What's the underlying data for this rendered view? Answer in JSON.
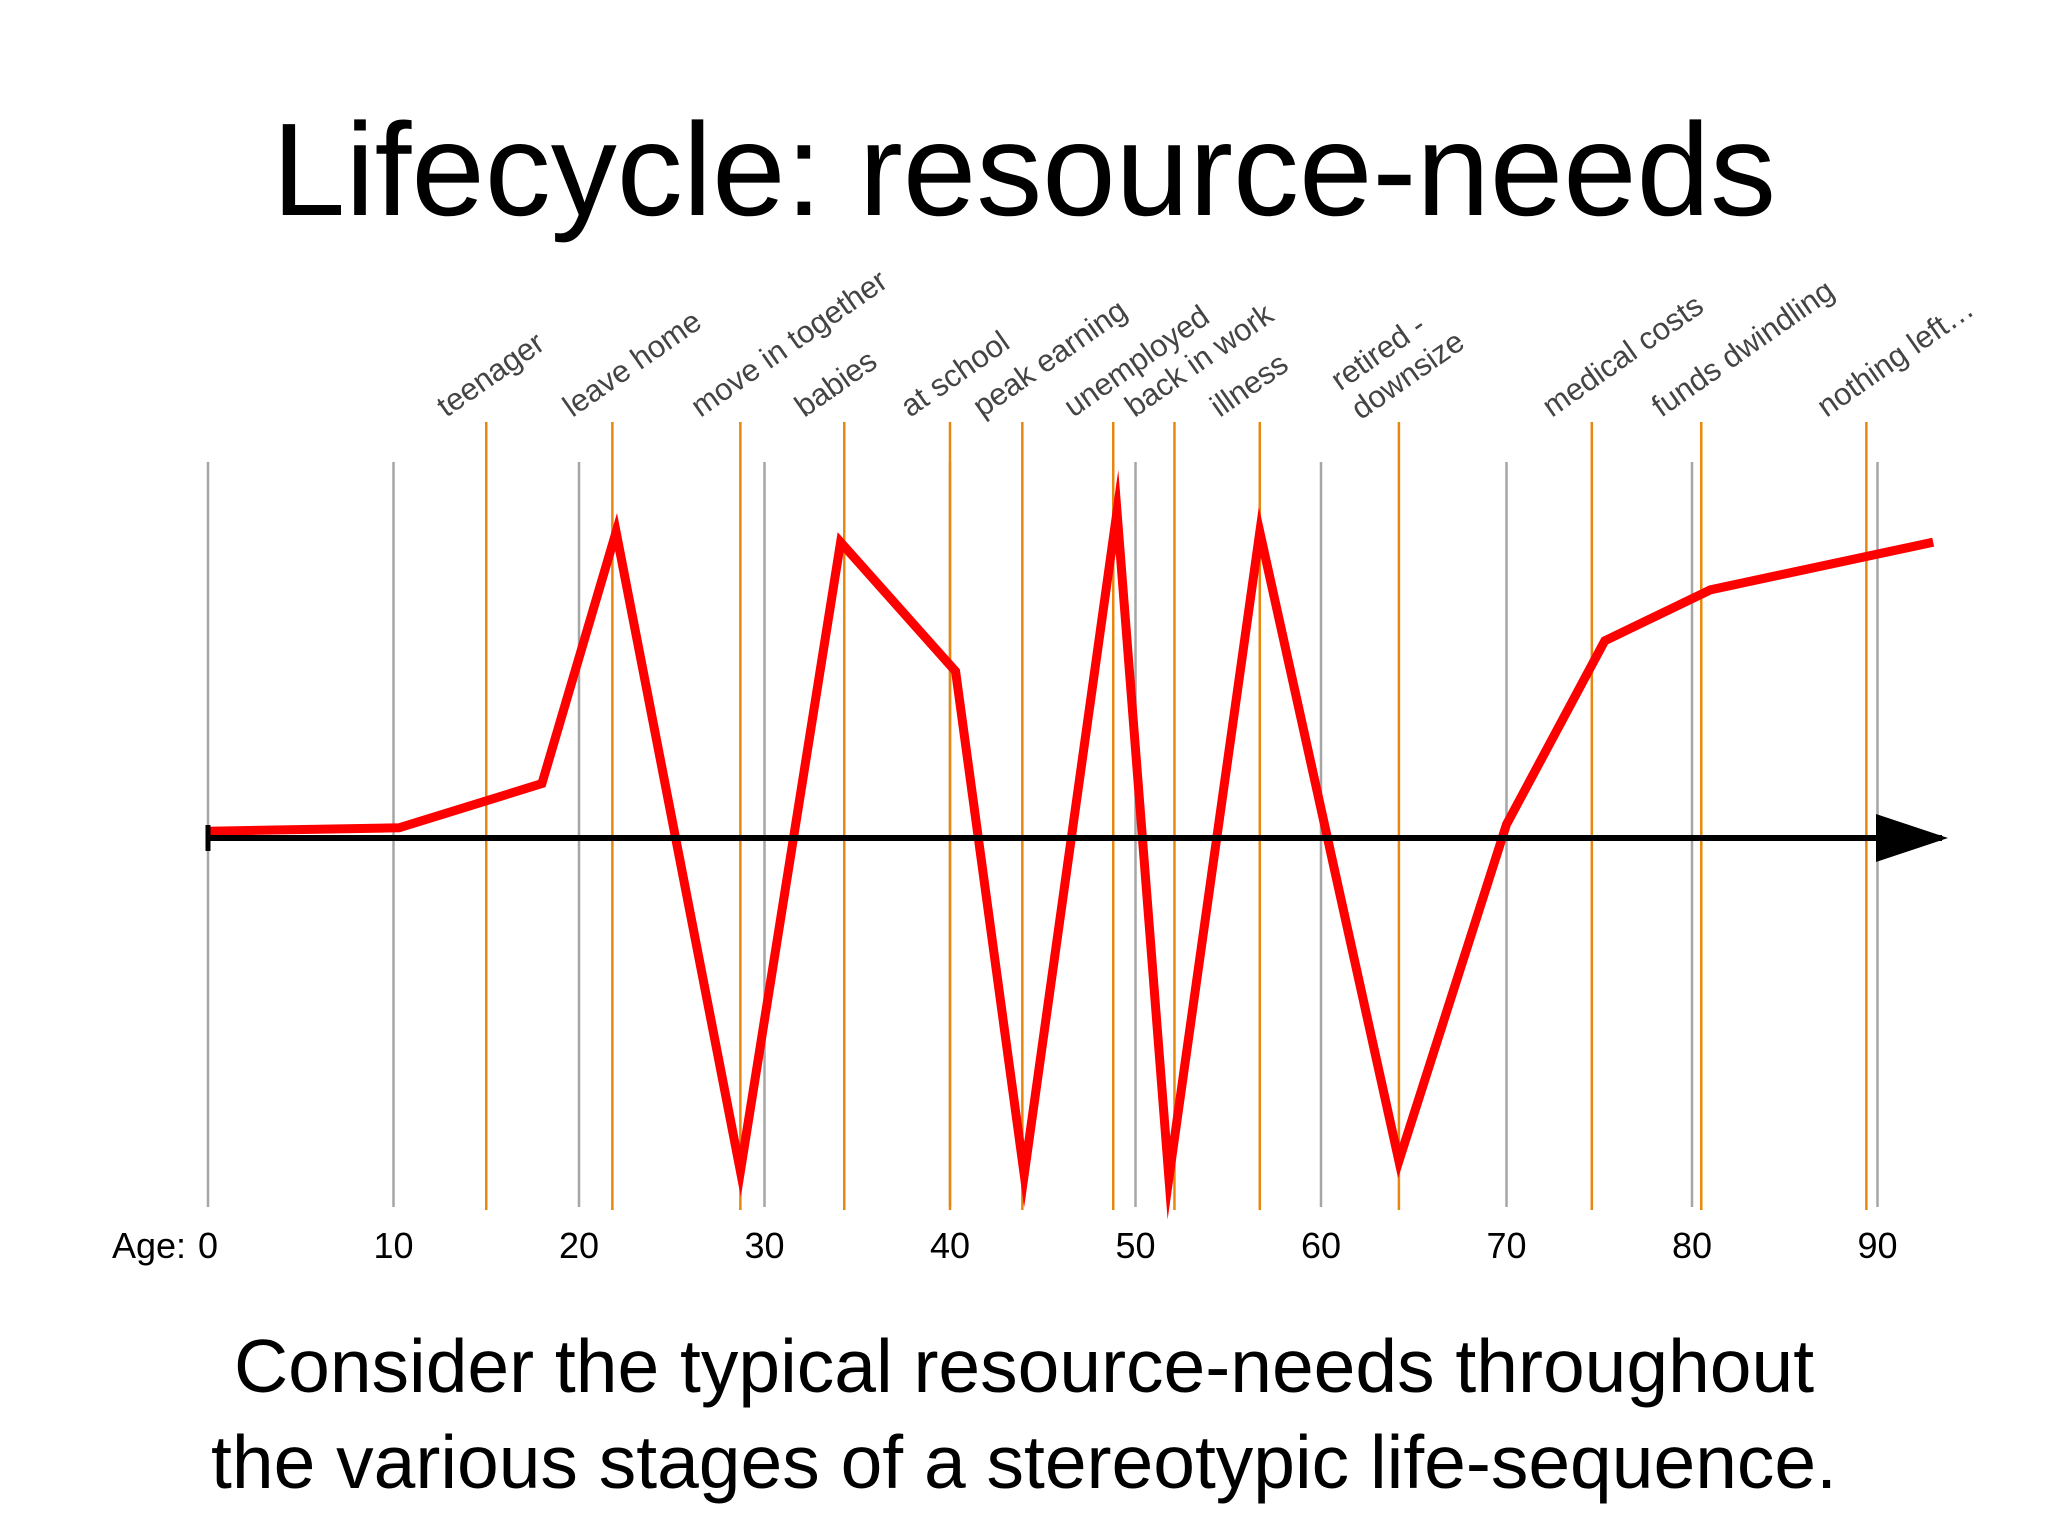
{
  "title": "Lifecycle: resource-needs",
  "caption": {
    "line1": "Consider the typical resource-needs throughout",
    "line2": "the various stages of a stereotypic life-sequence."
  },
  "colors": {
    "series": "#ff0000",
    "event_lines": "#e8870e",
    "decade_lines": "#a6a6a6",
    "axis": "#000000",
    "event_text": "#444444"
  },
  "chart_data": {
    "type": "line",
    "title": "Lifecycle: resource-needs",
    "xlabel": "Age:",
    "ylabel": "",
    "xlim": [
      0,
      93
    ],
    "ylim": [
      -1,
      1
    ],
    "x_ticks": [
      0,
      10,
      20,
      30,
      40,
      50,
      60,
      70,
      80,
      90
    ],
    "x_tick_labels": [
      "0",
      "10",
      "20",
      "30",
      "40",
      "50",
      "60",
      "70",
      "80",
      "90"
    ],
    "grid": true,
    "legend": "none",
    "events": [
      {
        "label": "teenager",
        "age": 15
      },
      {
        "label": "leave home",
        "age": 21.8
      },
      {
        "label": "move in together",
        "age": 28.7
      },
      {
        "label": "babies",
        "age": 34.3
      },
      {
        "label": "at school",
        "age": 40
      },
      {
        "label": "peak earning",
        "age": 43.9
      },
      {
        "label": "unemployed",
        "age": 48.8
      },
      {
        "label": "back in work",
        "age": 52.1
      },
      {
        "label": "illness",
        "age": 56.7
      },
      {
        "label": "retired -",
        "label2": "downsize",
        "age": 64.2
      },
      {
        "label": "medical costs",
        "age": 74.6
      },
      {
        "label": "funds dwindling",
        "age": 80.5
      },
      {
        "label": "nothing left…",
        "age": 89.4
      }
    ],
    "series": [
      {
        "x": [
          0,
          10.3,
          18,
          22,
          28.7,
          34.1,
          40.3,
          44,
          49,
          51.8,
          56.7,
          64.2,
          70,
          75.3,
          81,
          93
        ],
        "y": [
          0.02,
          0.03,
          0.16,
          0.9,
          -0.98,
          0.87,
          0.49,
          -0.99,
          0.96,
          -1.0,
          0.9,
          -0.95,
          0.04,
          0.58,
          0.73,
          0.87
        ]
      }
    ]
  }
}
